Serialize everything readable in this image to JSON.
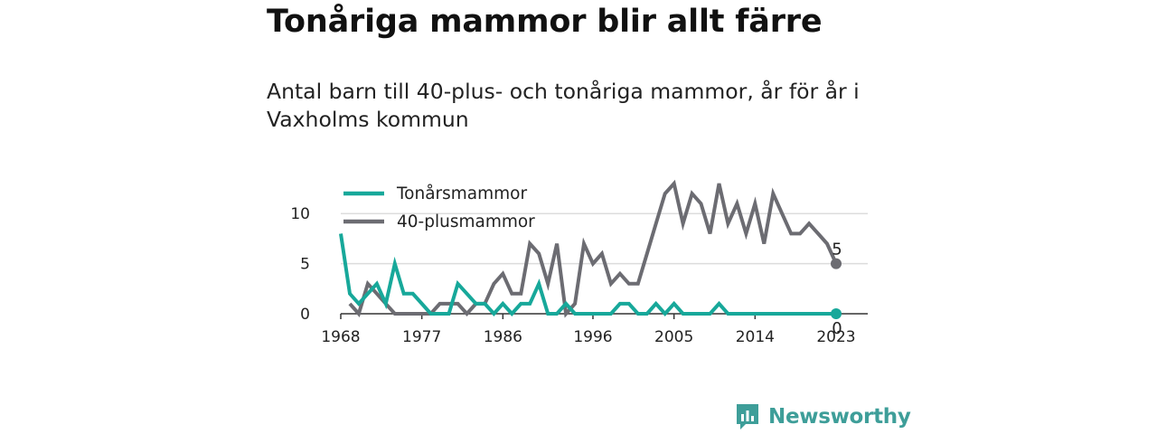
{
  "title": "Tonåriga mammor blir allt färre",
  "subtitle": "Antal barn till 40-plus- och tonåriga mammor, år för år i Vaxholms kommun",
  "brand": {
    "name": "Newsworthy",
    "color": "#3e9e99",
    "icon": "bar-chart-logo-icon"
  },
  "chart_data": {
    "type": "line",
    "x": [
      1968,
      1969,
      1970,
      1971,
      1972,
      1973,
      1974,
      1975,
      1976,
      1977,
      1978,
      1979,
      1980,
      1981,
      1982,
      1983,
      1984,
      1985,
      1986,
      1987,
      1988,
      1989,
      1990,
      1991,
      1992,
      1993,
      1994,
      1995,
      1996,
      1997,
      1998,
      1999,
      2000,
      2001,
      2002,
      2003,
      2004,
      2005,
      2006,
      2007,
      2008,
      2009,
      2010,
      2011,
      2012,
      2013,
      2014,
      2015,
      2016,
      2017,
      2018,
      2019,
      2020,
      2021,
      2022,
      2023
    ],
    "series": [
      {
        "name": "Tonårsmammor",
        "color": "#17a89a",
        "values": [
          8,
          2,
          1,
          2,
          3,
          1,
          5,
          2,
          2,
          1,
          0,
          0,
          0,
          3,
          2,
          1,
          1,
          0,
          1,
          0,
          1,
          1,
          3,
          0,
          0,
          1,
          0,
          0,
          0,
          0,
          0,
          1,
          1,
          0,
          0,
          1,
          0,
          1,
          0,
          0,
          0,
          0,
          1,
          0,
          0,
          0,
          0,
          0,
          0,
          0,
          0,
          0,
          0,
          0,
          0,
          0
        ]
      },
      {
        "name": "40-plusmammor",
        "color": "#6c6c72",
        "values": [
          null,
          1,
          0,
          3,
          2,
          1,
          0,
          0,
          0,
          0,
          0,
          1,
          1,
          1,
          0,
          1,
          1,
          3,
          4,
          2,
          2,
          7,
          6,
          3,
          7,
          0,
          1,
          7,
          5,
          6,
          3,
          4,
          3,
          3,
          6,
          9,
          12,
          13,
          9,
          12,
          11,
          8,
          13,
          9,
          11,
          8,
          11,
          7,
          12,
          10,
          8,
          8,
          9,
          8,
          7,
          5
        ]
      }
    ],
    "end_labels": [
      "0",
      "5"
    ],
    "x_ticks": [
      "1968",
      "1977",
      "1986",
      "1996",
      "2005",
      "2014",
      "2023"
    ],
    "y_ticks": [
      "0",
      "5",
      "10"
    ],
    "xlim": [
      1968,
      2023
    ],
    "ylim": [
      0,
      13
    ],
    "grid": true,
    "legend": "top-left"
  }
}
